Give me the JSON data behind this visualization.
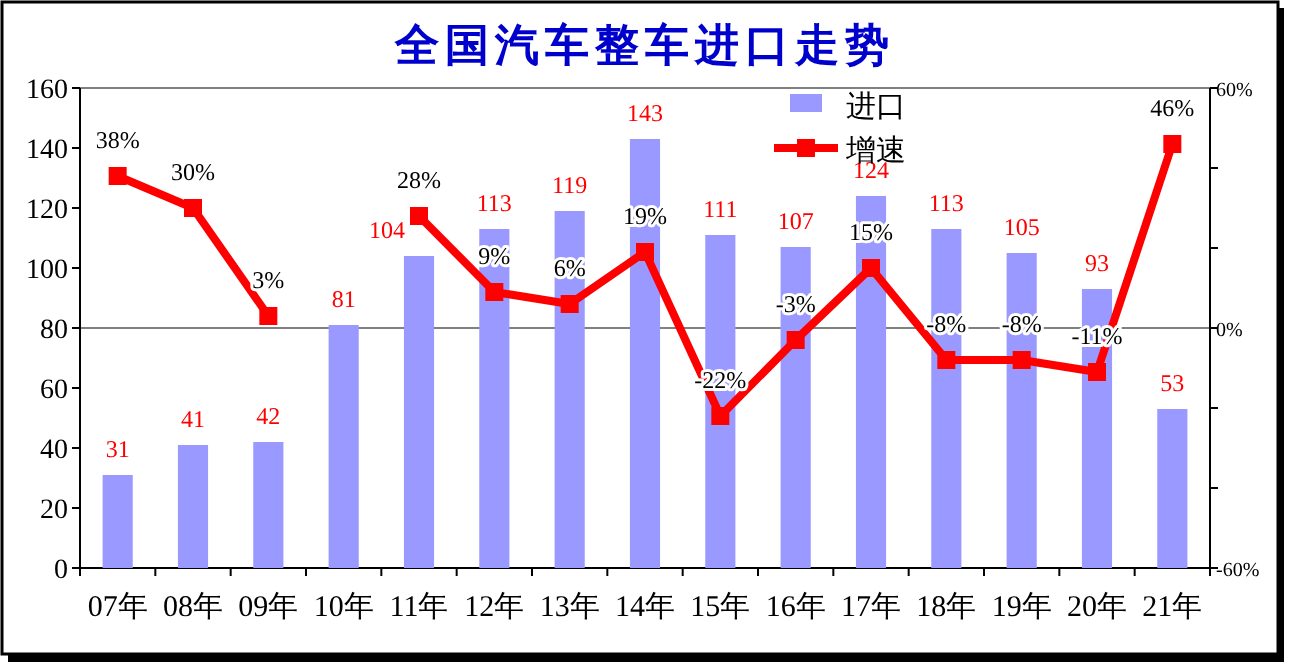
{
  "chart_data": {
    "type": "bar",
    "title": "全国汽车整车进口走势",
    "categories": [
      "07年",
      "08年",
      "09年",
      "10年",
      "11年",
      "12年",
      "13年",
      "14年",
      "15年",
      "16年",
      "17年",
      "18年",
      "19年",
      "20年",
      "21年"
    ],
    "series": [
      {
        "name": "进口",
        "color": "#9999ff",
        "values": [
          31,
          41,
          42,
          81,
          104,
          113,
          119,
          143,
          111,
          107,
          124,
          113,
          105,
          93,
          53
        ],
        "value_labels": [
          "31",
          "41",
          "42",
          "81",
          "104",
          "113",
          "119",
          "143",
          "111",
          "107",
          "124",
          "113",
          "105",
          "93",
          "53"
        ]
      },
      {
        "name": "增速",
        "type": "line",
        "axis": "y2",
        "color": "#ff0000",
        "values": [
          38,
          30,
          3,
          null,
          28,
          9,
          6,
          19,
          -22,
          -3,
          15,
          -8,
          -8,
          -11,
          46
        ],
        "value_labels": [
          "38%",
          "30%",
          "3%",
          null,
          "28%",
          "9%",
          "6%",
          "19%",
          "-22%",
          "-3%",
          "15%",
          "-8%",
          "-8%",
          "-11%",
          "46%"
        ]
      }
    ],
    "ylim": [
      0,
      160
    ],
    "yticks": [
      0,
      20,
      40,
      60,
      80,
      100,
      120,
      140,
      160
    ],
    "y2lim": [
      -60,
      60
    ],
    "y2ticks": [
      {
        "value": -60,
        "label": "-60%"
      },
      {
        "value": -40,
        "label": null
      },
      {
        "value": -20,
        "label": null
      },
      {
        "value": 0,
        "label": "0%"
      },
      {
        "value": 20,
        "label": null
      },
      {
        "value": 40,
        "label": null
      },
      {
        "value": 60,
        "label": "60%"
      }
    ],
    "ref_lines": [
      {
        "axis": "y2",
        "value": 0,
        "color": "#808080"
      }
    ],
    "legend": "top right",
    "marker": "square"
  }
}
